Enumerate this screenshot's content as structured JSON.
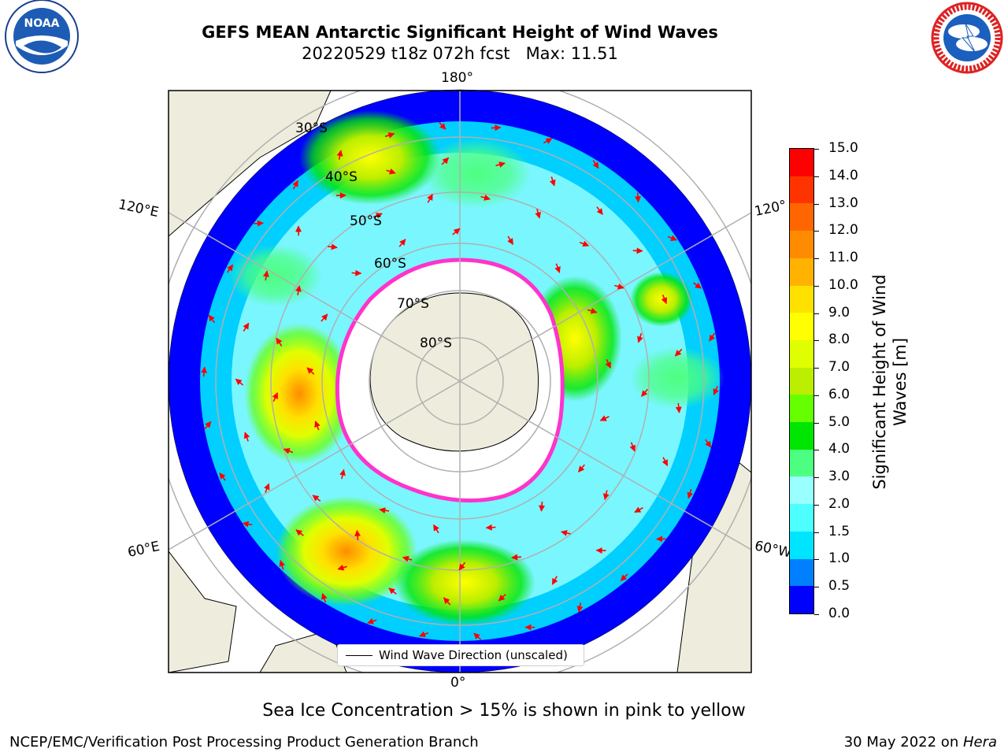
{
  "title": {
    "line1": "GEFS MEAN Antarctic Significant Height of Wind Waves",
    "line2": "20220529 t18z 072h fcst   Max: 11.51"
  },
  "logos": {
    "left": {
      "name": "noaa-logo",
      "text": "NOAA"
    },
    "right": {
      "name": "nws-logo",
      "text": "NATIONAL WEATHER SERVICE"
    }
  },
  "map": {
    "projection": "south-polar-stereographic",
    "longitude_labels": {
      "top": "180°",
      "bottom": "0°",
      "left_upper": "120°E",
      "left_lower": "60°E",
      "right_upper": "120°",
      "right_lower": "60°W"
    },
    "latitude_labels": [
      "30°S",
      "40°S",
      "50°S",
      "60°S",
      "70°S",
      "80°S"
    ],
    "colors": {
      "land": "#eeeddd",
      "ice": "#ffffff",
      "ice_edge": "#ff33cc",
      "arrow": "#ff0000",
      "grid": "#b0b0b0"
    }
  },
  "colorbar": {
    "label": "Significant Height of Wind Waves [m]",
    "label_line1": "Significant Height of Wind",
    "label_line2": "Waves [m]",
    "ticks": [
      "0.0",
      "0.5",
      "1.0",
      "1.5",
      "2.0",
      "3.0",
      "4.0",
      "5.0",
      "6.0",
      "7.0",
      "8.0",
      "9.0",
      "10.0",
      "11.0",
      "12.0",
      "13.0",
      "14.0",
      "15.0"
    ],
    "colors": [
      "#0000ff",
      "#0080ff",
      "#00e5ff",
      "#4dffff",
      "#99ffff",
      "#4dff80",
      "#00e600",
      "#66ff00",
      "#bbee00",
      "#dfff00",
      "#ffff00",
      "#ffe100",
      "#ffb300",
      "#ff8c00",
      "#ff6600",
      "#ff3300",
      "#ff0000"
    ]
  },
  "legend": {
    "label": "Wind Wave Direction (unscaled)"
  },
  "footnote": "Sea Ice Concentration > 15% is shown in pink to yellow",
  "credit": "NCEP/EMC/Verification Post Processing Product Generation Branch",
  "date": {
    "prefix": "30 May 2022 on ",
    "machine": "Hera"
  }
}
